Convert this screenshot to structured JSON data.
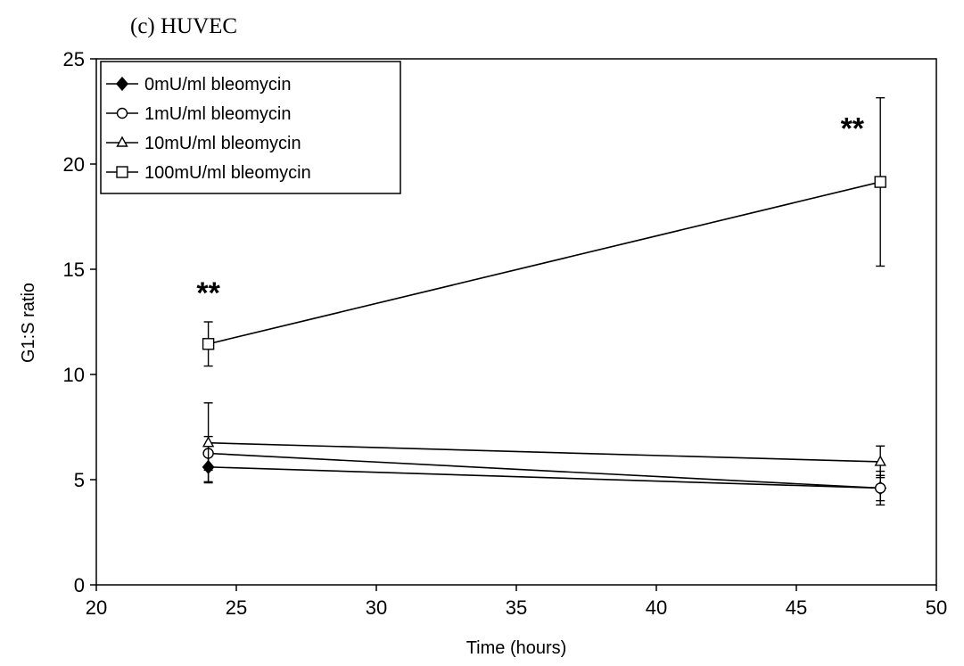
{
  "chart_data": {
    "type": "line",
    "title": "(c) HUVEC",
    "xlabel": "Time (hours)",
    "ylabel": "G1:S ratio",
    "xlim": [
      20,
      50
    ],
    "ylim": [
      0,
      25
    ],
    "xticks": [
      20,
      25,
      30,
      35,
      40,
      45,
      50
    ],
    "yticks": [
      0,
      5,
      10,
      15,
      20,
      25
    ],
    "grid": false,
    "legend_position": "top-left",
    "x": [
      24,
      48
    ],
    "series": [
      {
        "name": "0mU/ml bleomycin",
        "marker": "diamond-filled",
        "values": [
          5.6,
          4.6
        ],
        "errors": [
          0.7,
          0.6
        ]
      },
      {
        "name": "1mU/ml bleomycin",
        "marker": "circle-open",
        "values": [
          6.25,
          4.6
        ],
        "errors": [
          0.8,
          0.8
        ]
      },
      {
        "name": "10mU/ml bleomycin",
        "marker": "triangle-open",
        "values": [
          6.75,
          5.85
        ],
        "errors": [
          1.9,
          0.75
        ]
      },
      {
        "name": "100mU/ml bleomycin",
        "marker": "square-open",
        "values": [
          11.45,
          19.15
        ],
        "errors": [
          1.05,
          4.0
        ]
      }
    ],
    "annotations": [
      {
        "text": "**",
        "x": 24,
        "y": 13.4
      },
      {
        "text": "**",
        "x": 47,
        "y": 21.2
      }
    ]
  }
}
